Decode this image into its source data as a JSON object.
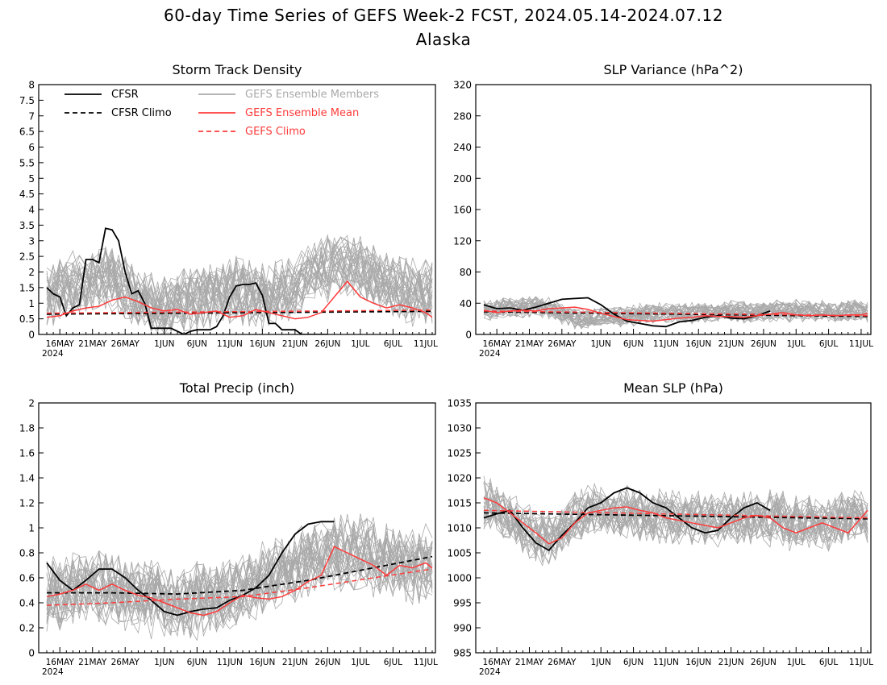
{
  "title_line1": "60-day Time Series of GEFS Week-2 FCST, 2024.05.14-2024.07.12",
  "title_line2": "Alaska",
  "colors": {
    "cfsr": "#000000",
    "members": "#a9a9a9",
    "ensemble_mean": "#ff3b3b",
    "gefs_climo": "#ff3b3b"
  },
  "legend": {
    "cfsr": "CFSR",
    "cfsr_climo": "CFSR Climo",
    "members": "GEFS Ensemble Members",
    "ensemble_mean": "GEFS Ensemble Mean",
    "gefs_climo": "GEFS Climo"
  },
  "x_axis": {
    "tick_labels": [
      "16MAY",
      "21MAY",
      "26MAY",
      "1JUN",
      "6JUN",
      "11JUN",
      "16JUN",
      "21JUN",
      "26JUN",
      "1JUL",
      "6JUL",
      "11JUL"
    ],
    "year_label": "2024"
  },
  "chart_data": [
    {
      "type": "line",
      "title": "Storm Track Density",
      "ylim": [
        0,
        8
      ],
      "yticks": [
        "0",
        "0.5",
        "1",
        "1.5",
        "2",
        "2.5",
        "3",
        "3.5",
        "4",
        "4.5",
        "5",
        "5.5",
        "6",
        "6.5",
        "7",
        "7.5",
        "8"
      ],
      "legend_placement": "top-left",
      "series": [
        {
          "name": "CFSR",
          "x": [
            0,
            1,
            2,
            3,
            4,
            5,
            6,
            7,
            8,
            9,
            10,
            11,
            12,
            13,
            14,
            15,
            16,
            17,
            18,
            19,
            20,
            21,
            22,
            23,
            24,
            25,
            26,
            27,
            28,
            29,
            30,
            31,
            32,
            33,
            34,
            35,
            36,
            37,
            38,
            39,
            40,
            41,
            42,
            43
          ],
          "values": [
            1.5,
            1.3,
            1.2,
            0.6,
            0.85,
            0.95,
            2.4,
            2.4,
            2.3,
            3.4,
            3.35,
            3.0,
            2.0,
            1.3,
            1.4,
            1.0,
            0.2,
            0.2,
            0.2,
            0.2,
            0.1,
            0.0,
            0.1,
            0.15,
            0.15,
            0.15,
            0.25,
            0.6,
            1.2,
            1.55,
            1.6,
            1.6,
            1.65,
            1.25,
            0.35,
            0.35,
            0.15,
            0.15,
            0.15,
            0.0,
            0,
            0,
            0,
            0
          ]
        },
        {
          "name": "CFSR Climo",
          "x": [
            0,
            59
          ],
          "values": [
            0.65,
            0.74
          ]
        },
        {
          "name": "GEFS Ensemble Mean",
          "x": [
            0,
            2,
            4,
            6,
            8,
            10,
            12,
            14,
            16,
            18,
            20,
            22,
            24,
            26,
            28,
            30,
            32,
            34,
            36,
            38,
            40,
            42,
            44,
            46,
            48,
            50,
            52,
            54,
            56,
            58,
            59
          ],
          "values": [
            0.55,
            0.6,
            0.75,
            0.85,
            0.9,
            1.1,
            1.2,
            1.05,
            0.85,
            0.75,
            0.8,
            0.65,
            0.7,
            0.75,
            0.55,
            0.6,
            0.8,
            0.7,
            0.6,
            0.5,
            0.55,
            0.7,
            1.2,
            1.7,
            1.2,
            1.0,
            0.85,
            0.95,
            0.85,
            0.7,
            0.55
          ]
        },
        {
          "name": "GEFS Climo",
          "x": [
            0,
            59
          ],
          "values": [
            0.68,
            0.78
          ]
        }
      ],
      "members": {
        "count": 30,
        "center": [
          1.2,
          1.3,
          1.4,
          1.5,
          1.6,
          1.5,
          1.6,
          1.7,
          1.8,
          1.9,
          1.8,
          1.6,
          1.5,
          1.3,
          1.1,
          1.0,
          1.0,
          1.0,
          1.0,
          1.0,
          1.1,
          1.1,
          1.2,
          1.2,
          1.2,
          1.3,
          1.3,
          1.4,
          1.4,
          1.4,
          1.3,
          1.3,
          1.3,
          1.2,
          1.2,
          1.3,
          1.4,
          1.5,
          1.6,
          1.7,
          1.8,
          1.9,
          2.0,
          2.1,
          2.2,
          2.2,
          2.2,
          2.2,
          2.1,
          2.0,
          1.9,
          1.8,
          1.7,
          1.6,
          1.5,
          1.4,
          1.3,
          1.3,
          1.3,
          1.3
        ],
        "spread": 1.0
      }
    },
    {
      "type": "line",
      "title": "SLP Variance (hPa^2)",
      "ylim": [
        0,
        320
      ],
      "yticks": [
        "0",
        "40",
        "80",
        "120",
        "160",
        "200",
        "240",
        "280",
        "320"
      ],
      "series": [
        {
          "name": "CFSR",
          "x": [
            0,
            2,
            4,
            6,
            8,
            10,
            12,
            14,
            16,
            18,
            20,
            22,
            24,
            26,
            28,
            30,
            32,
            34,
            36,
            38,
            40,
            42,
            44
          ],
          "values": [
            38,
            33,
            34,
            31,
            35,
            40,
            45,
            46,
            47,
            38,
            26,
            17,
            14,
            11,
            10,
            16,
            18,
            22,
            24,
            21,
            20,
            24,
            30
          ]
        },
        {
          "name": "CFSR Climo",
          "x": [
            0,
            59
          ],
          "values": [
            29,
            23
          ]
        },
        {
          "name": "GEFS Ensemble Mean",
          "x": [
            0,
            2,
            4,
            6,
            8,
            10,
            12,
            14,
            16,
            18,
            20,
            22,
            24,
            26,
            28,
            30,
            32,
            34,
            36,
            38,
            40,
            42,
            44,
            46,
            48,
            50,
            52,
            54,
            56,
            58,
            59
          ],
          "values": [
            31,
            28,
            30,
            31,
            30,
            33,
            34,
            35,
            32,
            27,
            23,
            19,
            18,
            17,
            19,
            21,
            22,
            24,
            23,
            23,
            22,
            24,
            26,
            28,
            25,
            24,
            25,
            24,
            25,
            25,
            27
          ]
        },
        {
          "name": "GEFS Climo",
          "x": [
            0,
            59
          ],
          "values": [
            30,
            24
          ]
        }
      ],
      "members": {
        "count": 30,
        "center": [
          32,
          32,
          33,
          34,
          34,
          35,
          36,
          37,
          37,
          36,
          33,
          30,
          26,
          23,
          21,
          20,
          21,
          22,
          23,
          23,
          23,
          23,
          24,
          25,
          26,
          27,
          27,
          28,
          28,
          28,
          28,
          28,
          28,
          28,
          28,
          28,
          29,
          29,
          29,
          29,
          29,
          29,
          29,
          30,
          30,
          30,
          30,
          30,
          30,
          30,
          30,
          30,
          30,
          30,
          30,
          30,
          30,
          30,
          30,
          30
        ],
        "spread": 13
      }
    },
    {
      "type": "line",
      "title": "Total Precip (inch)",
      "ylim": [
        0,
        2
      ],
      "yticks": [
        "0",
        "0.2",
        "0.4",
        "0.6",
        "0.8",
        "1",
        "1.2",
        "1.4",
        "1.6",
        "1.8",
        "2"
      ],
      "series": [
        {
          "name": "CFSR",
          "x": [
            0,
            2,
            4,
            6,
            8,
            10,
            12,
            14,
            16,
            18,
            20,
            22,
            24,
            26,
            28,
            30,
            32,
            34,
            36,
            38,
            40,
            42,
            44
          ],
          "values": [
            0.72,
            0.58,
            0.5,
            0.58,
            0.67,
            0.67,
            0.6,
            0.5,
            0.42,
            0.33,
            0.3,
            0.33,
            0.35,
            0.36,
            0.42,
            0.46,
            0.52,
            0.62,
            0.8,
            0.95,
            1.03,
            1.05,
            1.05
          ]
        },
        {
          "name": "CFSR Climo",
          "x": [
            0,
            10,
            20,
            30,
            40,
            50,
            59
          ],
          "values": [
            0.48,
            0.48,
            0.47,
            0.5,
            0.58,
            0.68,
            0.77
          ]
        },
        {
          "name": "GEFS Ensemble Mean",
          "x": [
            0,
            2,
            4,
            6,
            8,
            10,
            12,
            14,
            16,
            18,
            20,
            22,
            24,
            26,
            28,
            30,
            32,
            34,
            36,
            38,
            40,
            42,
            44,
            46,
            48,
            50,
            52,
            54,
            56,
            58,
            59
          ],
          "values": [
            0.45,
            0.47,
            0.5,
            0.55,
            0.5,
            0.55,
            0.5,
            0.46,
            0.44,
            0.4,
            0.36,
            0.32,
            0.3,
            0.33,
            0.4,
            0.46,
            0.44,
            0.43,
            0.45,
            0.5,
            0.57,
            0.62,
            0.85,
            0.8,
            0.75,
            0.7,
            0.62,
            0.7,
            0.68,
            0.72,
            0.68
          ]
        },
        {
          "name": "GEFS Climo",
          "x": [
            0,
            10,
            20,
            30,
            40,
            50,
            59
          ],
          "values": [
            0.38,
            0.4,
            0.43,
            0.45,
            0.52,
            0.6,
            0.67
          ]
        }
      ],
      "members": {
        "count": 30,
        "center": [
          0.45,
          0.47,
          0.48,
          0.5,
          0.52,
          0.54,
          0.55,
          0.56,
          0.55,
          0.54,
          0.52,
          0.5,
          0.48,
          0.47,
          0.46,
          0.45,
          0.44,
          0.43,
          0.42,
          0.42,
          0.42,
          0.42,
          0.43,
          0.43,
          0.44,
          0.45,
          0.46,
          0.47,
          0.48,
          0.5,
          0.52,
          0.54,
          0.56,
          0.58,
          0.6,
          0.62,
          0.64,
          0.66,
          0.68,
          0.7,
          0.72,
          0.74,
          0.76,
          0.78,
          0.8,
          0.8,
          0.8,
          0.79,
          0.78,
          0.77,
          0.76,
          0.75,
          0.74,
          0.73,
          0.72,
          0.71,
          0.7,
          0.7,
          0.7,
          0.7
        ],
        "spread": 0.28
      }
    },
    {
      "type": "line",
      "title": "Mean SLP (hPa)",
      "ylim": [
        985,
        1035
      ],
      "yticks": [
        "985",
        "990",
        "995",
        "1000",
        "1005",
        "1010",
        "1015",
        "1020",
        "1025",
        "1030",
        "1035"
      ],
      "series": [
        {
          "name": "CFSR",
          "x": [
            0,
            2,
            4,
            6,
            8,
            10,
            12,
            14,
            16,
            18,
            20,
            22,
            24,
            26,
            28,
            30,
            32,
            34,
            36,
            38,
            40,
            42,
            44
          ],
          "values": [
            1012,
            1012.8,
            1013.5,
            1010,
            1007,
            1005.5,
            1008.5,
            1011,
            1014,
            1015,
            1017,
            1018,
            1017,
            1015,
            1014,
            1012,
            1010,
            1009,
            1009.5,
            1012,
            1014,
            1015,
            1013.5
          ]
        },
        {
          "name": "CFSR Climo",
          "x": [
            0,
            59
          ],
          "values": [
            1013,
            1011.8
          ]
        },
        {
          "name": "GEFS Ensemble Mean",
          "x": [
            0,
            2,
            4,
            6,
            8,
            10,
            12,
            14,
            16,
            18,
            20,
            22,
            24,
            26,
            28,
            30,
            32,
            34,
            36,
            38,
            40,
            42,
            44,
            46,
            48,
            50,
            52,
            54,
            56,
            58,
            59
          ],
          "values": [
            1016,
            1015,
            1013,
            1011,
            1009,
            1006.8,
            1008,
            1011,
            1013,
            1013.5,
            1014,
            1014.2,
            1013.5,
            1013,
            1012,
            1011.5,
            1011,
            1010.5,
            1010,
            1011,
            1012,
            1012.5,
            1012,
            1010,
            1009,
            1010,
            1011,
            1010,
            1009,
            1012,
            1013.5
          ]
        },
        {
          "name": "GEFS Climo",
          "x": [
            0,
            59
          ],
          "values": [
            1013.5,
            1012
          ]
        }
      ],
      "members": {
        "count": 30,
        "center": [
          1015,
          1015,
          1014,
          1013,
          1012,
          1011,
          1010,
          1009,
          1008,
          1008,
          1008,
          1009,
          1010,
          1011,
          1012,
          1012,
          1013,
          1013,
          1013,
          1013,
          1013,
          1013,
          1013,
          1013,
          1013,
          1012,
          1012,
          1012,
          1012,
          1012,
          1012,
          1012,
          1012,
          1012,
          1012,
          1012,
          1012,
          1012,
          1012,
          1012,
          1012,
          1012,
          1012,
          1012,
          1012,
          1012,
          1012,
          1011,
          1011,
          1011,
          1011,
          1011,
          1011,
          1011,
          1011,
          1012,
          1012,
          1012,
          1012,
          1012
        ],
        "spread": 5
      }
    }
  ]
}
